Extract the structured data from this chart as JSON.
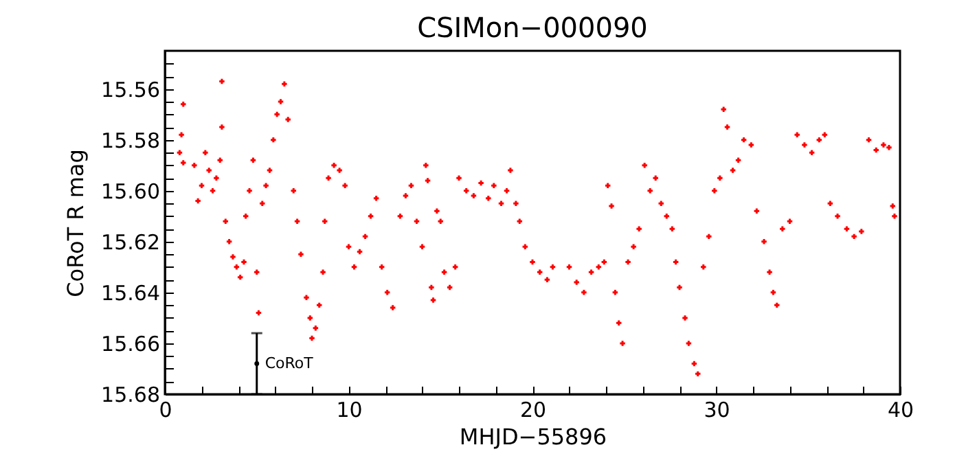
{
  "chart_data": {
    "type": "scatter",
    "title": "CSIMon−000090",
    "xlabel": "MHJD−55896",
    "ylabel": "CoRoT R mag",
    "xlim": [
      0,
      40
    ],
    "ylim": [
      15.68,
      15.545
    ],
    "xticks": [
      0,
      {
        "value": 2,
        "label": null
      },
      {
        "value": 4,
        "label": null
      },
      {
        "value": 6,
        "label": null
      },
      {
        "value": 8,
        "label": null
      },
      10,
      {
        "value": 12,
        "label": null
      },
      {
        "value": 14,
        "label": null
      },
      {
        "value": 16,
        "label": null
      },
      {
        "value": 18,
        "label": null
      },
      20,
      {
        "value": 22,
        "label": null
      },
      {
        "value": 24,
        "label": null
      },
      {
        "value": 26,
        "label": null
      },
      {
        "value": 28,
        "label": null
      },
      30,
      {
        "value": 32,
        "label": null
      },
      {
        "value": 34,
        "label": null
      },
      {
        "value": 36,
        "label": null
      },
      {
        "value": 38,
        "label": null
      },
      40
    ],
    "yticks": [
      {
        "value": 15.55,
        "label": null
      },
      {
        "value": 15.555,
        "label": null
      },
      15.56,
      {
        "value": 15.565,
        "label": null
      },
      {
        "value": 15.57,
        "label": null
      },
      {
        "value": 15.575,
        "label": null
      },
      15.58,
      {
        "value": 15.585,
        "label": null
      },
      {
        "value": 15.59,
        "label": null
      },
      {
        "value": 15.595,
        "label": null
      },
      {
        "value": 15.6,
        "label": "15.60"
      },
      {
        "value": 15.605,
        "label": null
      },
      {
        "value": 15.61,
        "label": null
      },
      {
        "value": 15.615,
        "label": null
      },
      15.62,
      {
        "value": 15.625,
        "label": null
      },
      {
        "value": 15.63,
        "label": null
      },
      {
        "value": 15.635,
        "label": null
      },
      15.64,
      {
        "value": 15.645,
        "label": null
      },
      {
        "value": 15.65,
        "label": null
      },
      {
        "value": 15.655,
        "label": null
      },
      15.66,
      {
        "value": 15.665,
        "label": null
      },
      {
        "value": 15.67,
        "label": null
      },
      {
        "value": 15.675,
        "label": null
      },
      15.68
    ],
    "grid": false,
    "annotations": [
      {
        "text": "CoRoT",
        "x": 5,
        "y": 15.668
      }
    ],
    "series": [
      {
        "color": "#ff0000",
        "marker": "cross",
        "x": [
          0.8,
          0.9,
          1.0,
          1.0,
          1.6,
          1.8,
          2.0,
          2.2,
          2.4,
          2.6,
          2.8,
          3.0,
          3.1,
          3.1,
          3.3,
          3.5,
          3.7,
          3.9,
          4.1,
          4.3,
          4.4,
          4.6,
          4.8,
          5.0,
          5.1,
          5.3,
          5.5,
          5.7,
          5.9,
          6.1,
          6.3,
          6.5,
          6.7,
          7.0,
          7.2,
          7.4,
          7.7,
          7.9,
          8.0,
          8.2,
          8.4,
          8.6,
          8.7,
          8.9,
          9.2,
          9.5,
          9.8,
          10.0,
          10.3,
          10.6,
          10.9,
          11.2,
          11.5,
          11.8,
          12.1,
          12.4,
          12.8,
          13.1,
          13.4,
          13.7,
          14.0,
          14.2,
          14.3,
          14.5,
          14.6,
          14.8,
          15.0,
          15.2,
          15.5,
          15.8,
          16.0,
          16.4,
          16.8,
          17.2,
          17.6,
          17.9,
          18.3,
          18.6,
          18.8,
          19.1,
          19.3,
          19.6,
          20.0,
          20.4,
          20.8,
          21.1,
          22.0,
          22.4,
          22.8,
          23.2,
          23.6,
          23.9,
          24.1,
          24.3,
          24.5,
          24.7,
          24.9,
          25.2,
          25.5,
          25.8,
          26.1,
          26.4,
          26.7,
          27.0,
          27.3,
          27.6,
          27.8,
          28.0,
          28.3,
          28.5,
          28.8,
          29.0,
          29.3,
          29.6,
          29.9,
          30.2,
          30.4,
          30.6,
          30.9,
          31.2,
          31.5,
          31.9,
          32.2,
          32.6,
          32.9,
          33.1,
          33.3,
          33.6,
          34.0,
          34.4,
          34.8,
          35.2,
          35.6,
          35.9,
          36.2,
          36.6,
          37.1,
          37.5,
          37.9,
          38.3,
          38.7,
          39.1,
          39.4,
          39.6,
          39.7
        ],
        "values": [
          15.585,
          15.578,
          15.566,
          15.589,
          15.59,
          15.604,
          15.598,
          15.585,
          15.592,
          15.6,
          15.595,
          15.588,
          15.557,
          15.575,
          15.612,
          15.62,
          15.626,
          15.63,
          15.634,
          15.628,
          15.61,
          15.6,
          15.588,
          15.632,
          15.648,
          15.605,
          15.598,
          15.592,
          15.58,
          15.57,
          15.565,
          15.558,
          15.572,
          15.6,
          15.612,
          15.625,
          15.642,
          15.65,
          15.658,
          15.654,
          15.645,
          15.632,
          15.612,
          15.595,
          15.59,
          15.592,
          15.598,
          15.622,
          15.63,
          15.624,
          15.618,
          15.61,
          15.603,
          15.63,
          15.64,
          15.646,
          15.61,
          15.602,
          15.598,
          15.612,
          15.622,
          15.59,
          15.596,
          15.638,
          15.643,
          15.608,
          15.612,
          15.632,
          15.638,
          15.63,
          15.595,
          15.6,
          15.602,
          15.597,
          15.603,
          15.598,
          15.605,
          15.6,
          15.592,
          15.605,
          15.612,
          15.622,
          15.628,
          15.632,
          15.635,
          15.63,
          15.63,
          15.636,
          15.64,
          15.632,
          15.63,
          15.628,
          15.598,
          15.606,
          15.64,
          15.652,
          15.66,
          15.628,
          15.622,
          15.615,
          15.59,
          15.6,
          15.595,
          15.605,
          15.61,
          15.615,
          15.628,
          15.638,
          15.65,
          15.66,
          15.668,
          15.672,
          15.63,
          15.618,
          15.6,
          15.595,
          15.568,
          15.575,
          15.592,
          15.588,
          15.58,
          15.582,
          15.608,
          15.62,
          15.632,
          15.64,
          15.645,
          15.615,
          15.612,
          15.578,
          15.582,
          15.585,
          15.58,
          15.578,
          15.605,
          15.61,
          15.615,
          15.618,
          15.616,
          15.58,
          15.584,
          15.582,
          15.583,
          15.606,
          15.61
        ]
      },
      {
        "color": "#000000",
        "marker": "circle",
        "x": [
          5
        ],
        "values": [
          15.668
        ],
        "errors": [
          0.012
        ]
      }
    ]
  }
}
